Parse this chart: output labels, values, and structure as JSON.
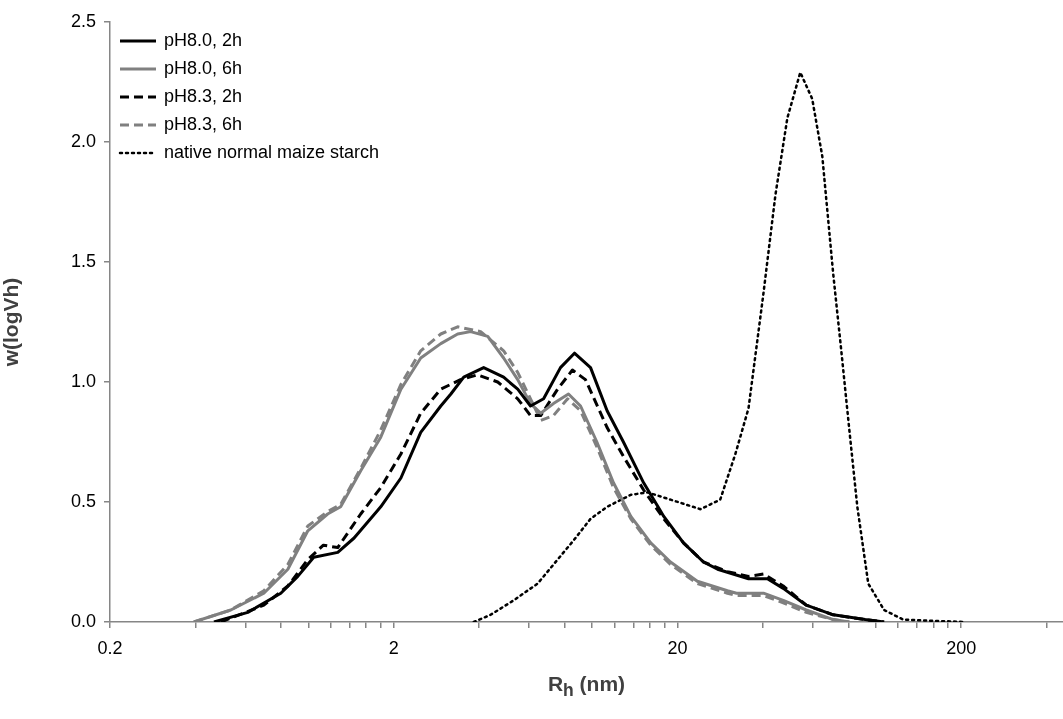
{
  "chart_data": {
    "type": "line",
    "xlabel": "R$_{h}$ (nm)",
    "ylabel": "w(logVh)",
    "log": "x",
    "grid": false,
    "legend": "top left",
    "marker": "none",
    "xlim": [
      0.2,
      457
    ],
    "ylim": [
      0,
      2.5
    ],
    "xticks": [
      0.2,
      {
        "value": 0.4,
        "label": null
      },
      {
        "value": 0.6,
        "label": null
      },
      {
        "value": 0.8,
        "label": null
      },
      {
        "value": 1,
        "label": null
      },
      {
        "value": 1.2,
        "label": null
      },
      {
        "value": 1.4,
        "label": null
      },
      {
        "value": 1.6,
        "label": null
      },
      {
        "value": 1.8,
        "label": null
      },
      2,
      {
        "value": 4,
        "label": null
      },
      {
        "value": 6,
        "label": null
      },
      {
        "value": 8,
        "label": null
      },
      {
        "value": 10,
        "label": null
      },
      {
        "value": 12,
        "label": null
      },
      {
        "value": 14,
        "label": null
      },
      {
        "value": 16,
        "label": null
      },
      {
        "value": 18,
        "label": null
      },
      20,
      {
        "value": 40,
        "label": null
      },
      {
        "value": 60,
        "label": null
      },
      {
        "value": 80,
        "label": null
      },
      {
        "value": 100,
        "label": null
      },
      {
        "value": 120,
        "label": null
      },
      {
        "value": 140,
        "label": null
      },
      {
        "value": 160,
        "label": null
      },
      {
        "value": 180,
        "label": null
      },
      200,
      {
        "value": 400,
        "label": null
      }
    ],
    "yticks": [
      {
        "value": 0,
        "label": "0.0"
      },
      {
        "value": 0.5,
        "label": "0.5"
      },
      {
        "value": 1,
        "label": "1.0"
      },
      {
        "value": 1.5,
        "label": "1.5"
      },
      {
        "value": 2,
        "label": "2.0"
      },
      {
        "value": 2.5,
        "label": "2.5"
      }
    ],
    "series": [
      {
        "name": "pH8.0, 2h",
        "color": "#000000",
        "line_style": "solid",
        "x": [
          0.465,
          0.612,
          0.8,
          0.918,
          1.045,
          1.27,
          1.45,
          1.8,
          2.12,
          2.49,
          2.93,
          3.18,
          3.53,
          4.15,
          4.88,
          5.47,
          6.07,
          6.75,
          7.74,
          8.67,
          9.88,
          11.3,
          12.9,
          15.2,
          17.9,
          21.0,
          24.7,
          27.7,
          35.6,
          41.5,
          47.2,
          56.9,
          70.8,
          91.8,
          107
        ],
        "values": [
          0,
          0.04,
          0.12,
          0.19,
          0.27,
          0.29,
          0.35,
          0.48,
          0.6,
          0.79,
          0.9,
          0.95,
          1.02,
          1.06,
          1.02,
          0.97,
          0.9,
          0.93,
          1.06,
          1.12,
          1.06,
          0.88,
          0.75,
          0.58,
          0.44,
          0.33,
          0.25,
          0.22,
          0.18,
          0.18,
          0.14,
          0.07,
          0.03,
          0.01,
          0
        ]
      },
      {
        "name": "pH8.0, 6h",
        "color": "#808080",
        "line_style": "solid",
        "x": [
          0.395,
          0.533,
          0.697,
          0.847,
          0.996,
          1.17,
          1.3,
          1.53,
          1.8,
          2.12,
          2.49,
          2.93,
          3.36,
          3.73,
          4.29,
          4.88,
          5.47,
          6.07,
          6.59,
          7.31,
          8.26,
          9.11,
          10.4,
          11.9,
          13.7,
          16.1,
          18.9,
          23.5,
          30.0,
          32.3,
          40.2,
          47.2,
          56.9,
          70.8,
          80.7
        ],
        "values": [
          0,
          0.05,
          0.12,
          0.22,
          0.38,
          0.45,
          0.48,
          0.63,
          0.77,
          0.97,
          1.1,
          1.16,
          1.2,
          1.21,
          1.19,
          1.1,
          1.01,
          0.91,
          0.87,
          0.91,
          0.95,
          0.9,
          0.75,
          0.58,
          0.44,
          0.33,
          0.25,
          0.17,
          0.13,
          0.12,
          0.12,
          0.09,
          0.05,
          0.01,
          0
        ]
      },
      {
        "name": "pH8.3, 2h",
        "color": "#000000",
        "line_style": "dashed",
        "x": [
          0.492,
          0.697,
          0.847,
          0.996,
          1.13,
          1.27,
          1.53,
          1.8,
          2.12,
          2.49,
          2.93,
          3.44,
          3.95,
          4.65,
          5.47,
          6.07,
          6.59,
          7.56,
          8.53,
          9.48,
          11.3,
          12.9,
          15.2,
          17.9,
          21.0,
          24.7,
          30.0,
          35.6,
          40.2,
          47.2,
          56.9,
          70.8,
          91.8,
          107
        ],
        "values": [
          0,
          0.07,
          0.15,
          0.26,
          0.32,
          0.31,
          0.45,
          0.56,
          0.7,
          0.87,
          0.97,
          1.01,
          1.03,
          1.0,
          0.93,
          0.86,
          0.86,
          0.97,
          1.05,
          1.01,
          0.81,
          0.69,
          0.55,
          0.43,
          0.33,
          0.25,
          0.21,
          0.19,
          0.2,
          0.15,
          0.07,
          0.03,
          0.01,
          0
        ]
      },
      {
        "name": "pH8.3, 6h",
        "color": "#808080",
        "line_style": "dashed",
        "x": [
          0.395,
          0.533,
          0.697,
          0.847,
          0.996,
          1.17,
          1.3,
          1.53,
          1.8,
          2.12,
          2.49,
          2.93,
          3.36,
          4.05,
          4.88,
          5.47,
          6.07,
          6.59,
          7.31,
          8.2,
          9.11,
          10.4,
          11.9,
          13.7,
          16.1,
          18.9,
          23.5,
          30.0,
          32.3,
          40.2,
          47.2,
          56.9,
          70.8,
          80.7
        ],
        "values": [
          0,
          0.05,
          0.13,
          0.24,
          0.4,
          0.46,
          0.49,
          0.64,
          0.8,
          0.99,
          1.13,
          1.2,
          1.23,
          1.21,
          1.13,
          1.04,
          0.93,
          0.84,
          0.86,
          0.93,
          0.88,
          0.73,
          0.56,
          0.43,
          0.32,
          0.24,
          0.16,
          0.12,
          0.11,
          0.11,
          0.08,
          0.04,
          0.01,
          0
        ]
      },
      {
        "name": "native normal maize starch",
        "color": "#000000",
        "line_style": "dotted",
        "x": [
          3.83,
          4.39,
          5.29,
          6.43,
          7.56,
          8.61,
          9.88,
          11.3,
          13.7,
          15.7,
          18.9,
          24.1,
          28.3,
          32.0,
          35.6,
          40.2,
          44.3,
          48.8,
          54.2,
          59.7,
          64.8,
          70.8,
          75.6,
          80.7,
          86.1,
          94.1,
          107,
          125,
          205
        ],
        "values": [
          0,
          0.03,
          0.09,
          0.16,
          0.26,
          0.34,
          0.43,
          0.48,
          0.53,
          0.54,
          0.51,
          0.47,
          0.51,
          0.7,
          0.89,
          1.37,
          1.78,
          2.1,
          2.29,
          2.18,
          1.94,
          1.45,
          1.13,
          0.8,
          0.48,
          0.16,
          0.05,
          0.01,
          0
        ]
      }
    ]
  }
}
